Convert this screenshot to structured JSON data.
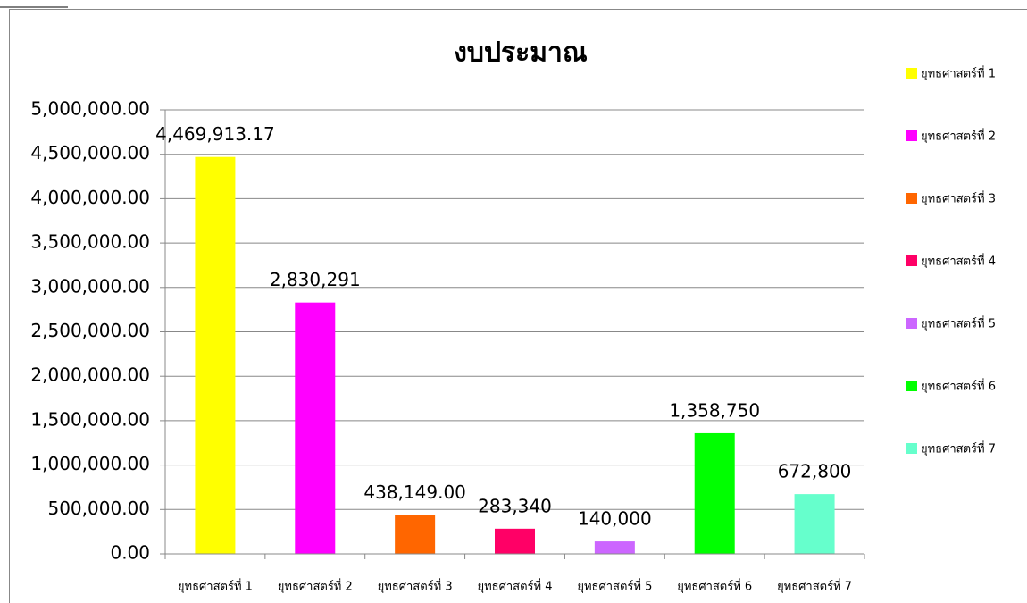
{
  "chart_data": {
    "type": "bar",
    "title": "งบประมาณ",
    "categories": [
      "ยุทธศาสตร์ที่ 1",
      "ยุทธศาสตร์ที่ 2",
      "ยุทธศาสตร์ที่ 3",
      "ยุทธศาสตร์ที่ 4",
      "ยุทธศาสตร์ที่ 5",
      "ยุทธศาสตร์ที่ 6",
      "ยุทธศาสตร์ที่ 7"
    ],
    "values": [
      4469913.17,
      2830291,
      438149,
      283340,
      140000,
      1358750,
      672800
    ],
    "value_labels": [
      "4,469,913.17",
      "2,830,291",
      "438,149.00",
      "283,340",
      "140,000",
      "1,358,750",
      "672,800"
    ],
    "colors": [
      "#ffff00",
      "#ff00ff",
      "#ff6600",
      "#ff0066",
      "#cc66ff",
      "#00ff00",
      "#66ffcc"
    ],
    "ylim": [
      0,
      5000000
    ],
    "yticks": [
      {
        "value": 0,
        "label": "0.00"
      },
      {
        "value": 500000,
        "label": "500,000.00"
      },
      {
        "value": 1000000,
        "label": "1,000,000.00"
      },
      {
        "value": 1500000,
        "label": "1,500,000.00"
      },
      {
        "value": 2000000,
        "label": "2,000,000.00"
      },
      {
        "value": 2500000,
        "label": "2,500,000.00"
      },
      {
        "value": 3000000,
        "label": "3,000,000.00"
      },
      {
        "value": 3500000,
        "label": "3,500,000.00"
      },
      {
        "value": 4000000,
        "label": "4,000,000.00"
      },
      {
        "value": 4500000,
        "label": "4,500,000.00"
      },
      {
        "value": 5000000,
        "label": "5,000,000.00"
      }
    ],
    "grid": true,
    "legend": "right"
  }
}
